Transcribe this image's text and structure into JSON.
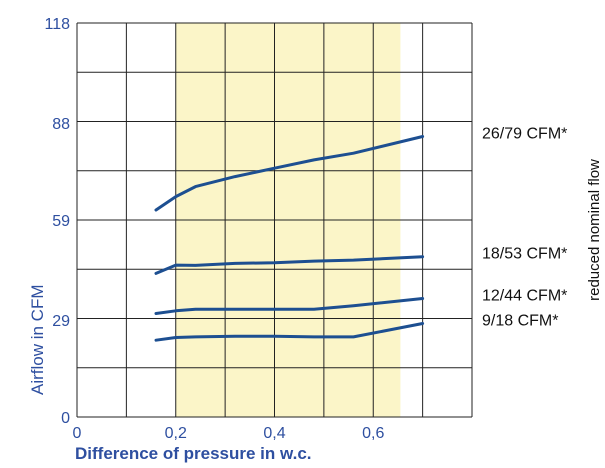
{
  "chart_data": {
    "type": "line",
    "title": "",
    "xlabel": "Difference of pressure in w.c.",
    "ylabel": "Airflow in CFM",
    "side_label": "reduced nominal flow",
    "xlim": [
      0,
      0.8
    ],
    "ylim": [
      0,
      118
    ],
    "y_ticks": [
      0,
      29,
      59,
      88,
      118
    ],
    "y_tick_labels": [
      "0",
      "29",
      "59",
      "88",
      "118"
    ],
    "x_ticks": [
      0,
      0.2,
      0.4,
      0.6
    ],
    "x_tick_labels": [
      "0",
      "0,2",
      "0,4",
      "0,6"
    ],
    "x_grid": [
      0,
      0.1,
      0.2,
      0.3,
      0.4,
      0.5,
      0.6,
      0.7,
      0.8
    ],
    "y_grid": [
      0,
      14.75,
      29.5,
      44.25,
      59,
      73.75,
      88.5,
      103.25,
      118
    ],
    "grid": true,
    "highlight_band": {
      "x": [
        0.2,
        0.655
      ],
      "color": "#fbf5c8"
    },
    "line_color": "#1d4f91",
    "series": [
      {
        "name": "26/79 CFM*",
        "x": [
          0.16,
          0.2,
          0.24,
          0.32,
          0.4,
          0.48,
          0.56,
          0.7
        ],
        "y": [
          62,
          66,
          69,
          72,
          74.5,
          77,
          79,
          84
        ]
      },
      {
        "name": "18/53 CFM*",
        "x": [
          0.16,
          0.2,
          0.24,
          0.32,
          0.4,
          0.48,
          0.56,
          0.7
        ],
        "y": [
          43,
          45.5,
          45.4,
          46,
          46.2,
          46.7,
          47,
          48
        ]
      },
      {
        "name": "12/44 CFM*",
        "x": [
          0.16,
          0.2,
          0.24,
          0.32,
          0.4,
          0.48,
          0.56,
          0.7
        ],
        "y": [
          31,
          31.8,
          32.3,
          32.3,
          32.3,
          32.3,
          33.3,
          35.5
        ]
      },
      {
        "name": "9/18 CFM*",
        "x": [
          0.16,
          0.2,
          0.24,
          0.32,
          0.4,
          0.48,
          0.56,
          0.7
        ],
        "y": [
          23,
          23.8,
          24,
          24.2,
          24.2,
          24,
          24,
          28
        ]
      }
    ]
  }
}
